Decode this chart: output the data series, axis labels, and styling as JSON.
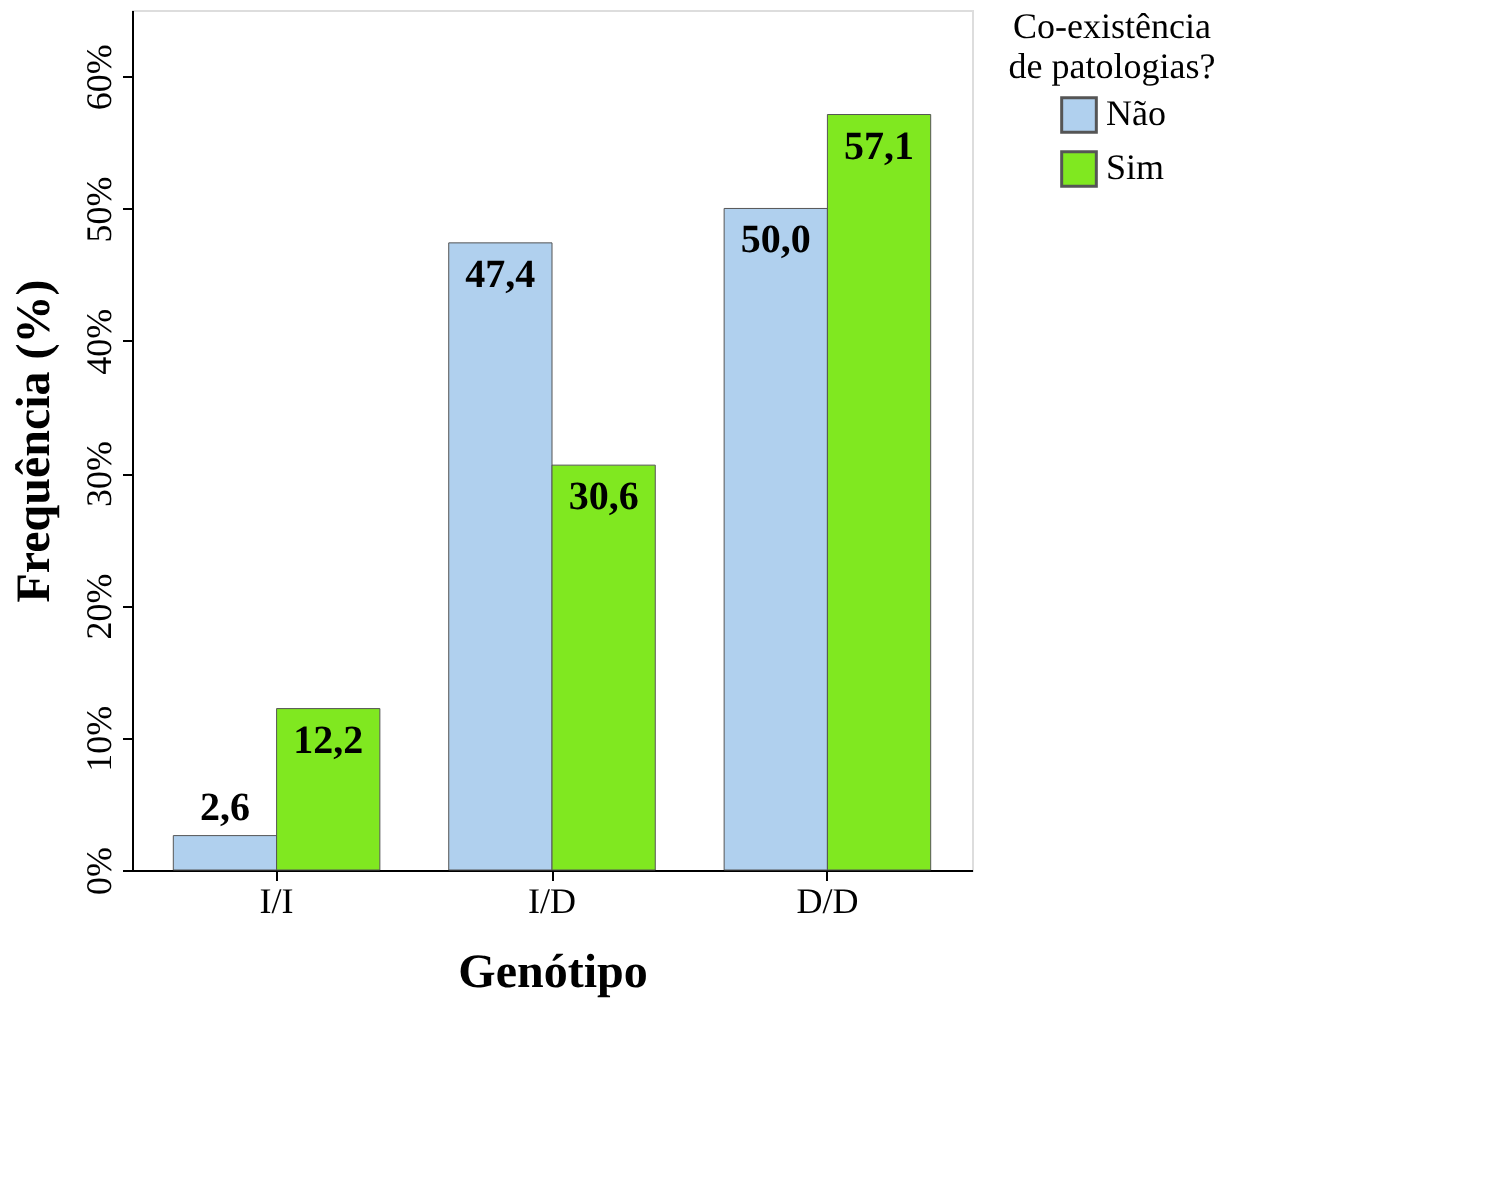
{
  "chart_data": {
    "type": "bar",
    "xlabel": "Genótipo",
    "ylabel": "Frequência (%)",
    "legend_title": "Co-existência\nde patologias?",
    "legend": "right",
    "grid": false,
    "categories": [
      "I/I",
      "I/D",
      "D/D"
    ],
    "series": [
      {
        "name": "Não",
        "color": "#b0d0ee",
        "values": [
          2.6,
          47.4,
          50.0
        ],
        "value_labels": [
          "2,6",
          "47,4",
          "50,0"
        ]
      },
      {
        "name": "Sim",
        "color": "#80e820",
        "values": [
          12.2,
          30.6,
          57.1
        ],
        "value_labels": [
          "12,2",
          "30,6",
          "57,1"
        ]
      }
    ],
    "ylim": [
      0,
      65
    ],
    "yticks": [
      {
        "value": 0,
        "label": "0%"
      },
      {
        "value": 10,
        "label": "10%"
      },
      {
        "value": 20,
        "label": "20%"
      },
      {
        "value": 30,
        "label": "30%"
      },
      {
        "value": 40,
        "label": "40%"
      },
      {
        "value": 50,
        "label": "50%"
      },
      {
        "value": 60,
        "label": "60%"
      }
    ]
  }
}
